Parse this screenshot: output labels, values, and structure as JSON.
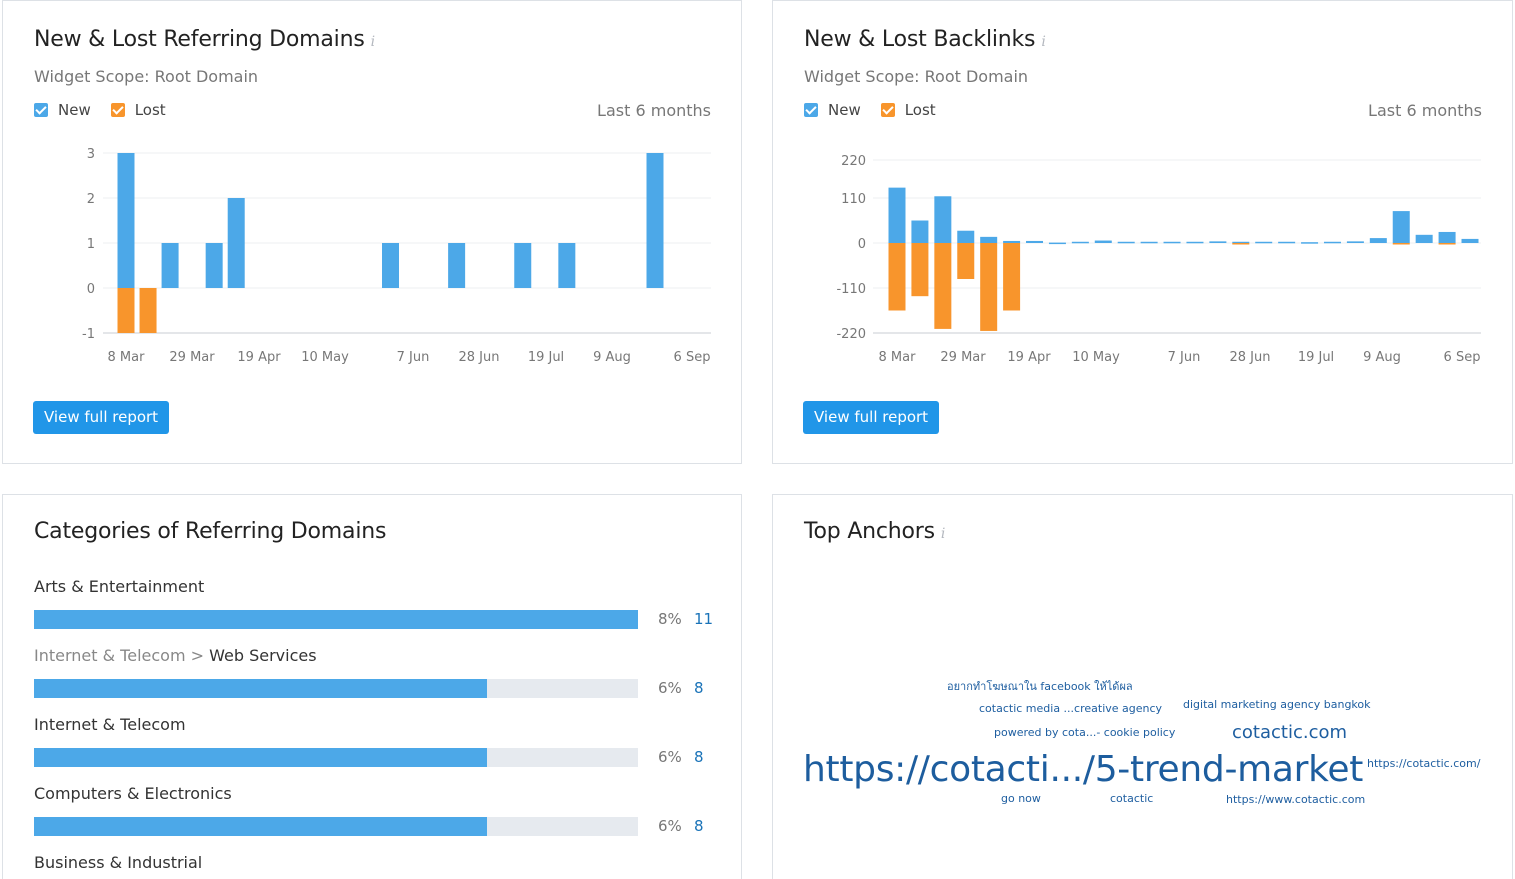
{
  "referring_domains": {
    "title": "New & Lost Referring Domains",
    "info_glyph": "i",
    "scope": "Widget Scope: Root Domain",
    "legend": {
      "new": "New",
      "lost": "Lost"
    },
    "period": "Last 6 months",
    "button": "View full report",
    "chart_data": {
      "type": "bar",
      "title": "",
      "xlabel": "",
      "ylabel": "",
      "y_ticks": [
        "3",
        "2",
        "1",
        "0",
        "-1"
      ],
      "x_tick_labels": [
        "8 Mar",
        "29 Mar",
        "19 Apr",
        "10 May",
        "7 Jun",
        "28 Jun",
        "19 Jul",
        "9 Aug",
        "6 Sep"
      ],
      "series": [
        {
          "name": "New",
          "color": "#4ca8e8",
          "values": [
            3,
            0,
            1,
            0,
            1,
            2,
            0,
            0,
            0,
            0,
            0,
            0,
            1,
            0,
            0,
            1,
            0,
            0,
            1,
            0,
            1,
            0,
            0,
            0,
            3
          ]
        },
        {
          "name": "Lost",
          "color": "#f8952c",
          "values": [
            -1,
            -1,
            0,
            0,
            0,
            0,
            0,
            0,
            0,
            0,
            0,
            0,
            0,
            0,
            0,
            0,
            0,
            0,
            0,
            0,
            0,
            0,
            0,
            0,
            0
          ]
        }
      ]
    }
  },
  "backlinks": {
    "title": "New & Lost Backlinks",
    "info_glyph": "i",
    "scope": "Widget Scope: Root Domain",
    "legend": {
      "new": "New",
      "lost": "Lost"
    },
    "period": "Last 6 months",
    "button": "View full report",
    "chart_data": {
      "type": "bar",
      "title": "",
      "xlabel": "",
      "ylabel": "",
      "y_ticks": [
        "220",
        "110",
        "0",
        "-110",
        "-220"
      ],
      "x_tick_labels": [
        "8 Mar",
        "29 Mar",
        "19 Apr",
        "10 May",
        "7 Jun",
        "28 Jun",
        "19 Jul",
        "9 Aug",
        "6 Sep"
      ],
      "series": [
        {
          "name": "New",
          "color": "#4ca8e8",
          "values": [
            140,
            55,
            115,
            30,
            15,
            5,
            5,
            1,
            3,
            6,
            3,
            3,
            3,
            3,
            4,
            3,
            3,
            3,
            2,
            3,
            4,
            12,
            78,
            20,
            27,
            10
          ]
        },
        {
          "name": "Lost",
          "color": "#f8952c",
          "values": [
            -165,
            -130,
            -210,
            -88,
            -215,
            -165,
            0,
            0,
            0,
            0,
            0,
            0,
            0,
            0,
            0,
            -2,
            0,
            0,
            0,
            0,
            0,
            0,
            -3,
            0,
            -2,
            0
          ]
        }
      ]
    }
  },
  "categories": {
    "title": "Categories of Referring Domains",
    "items": [
      {
        "prefix": "",
        "label": "Arts & Entertainment",
        "pct": "8%",
        "count": "11",
        "fraction": 1.0
      },
      {
        "prefix": "Internet & Telecom > ",
        "label": "Web Services",
        "pct": "6%",
        "count": "8",
        "fraction": 0.75
      },
      {
        "prefix": "",
        "label": "Internet & Telecom",
        "pct": "6%",
        "count": "8",
        "fraction": 0.75
      },
      {
        "prefix": "",
        "label": "Computers & Electronics",
        "pct": "6%",
        "count": "8",
        "fraction": 0.75
      },
      {
        "prefix": "",
        "label": "Business & Industrial",
        "pct": "",
        "count": "",
        "fraction": 0.7
      }
    ]
  },
  "anchors": {
    "title": "Top Anchors",
    "info_glyph": "i",
    "items": [
      "อยากทำโฆษณาใน facebook ให้ได้ผล",
      "cotactic media ...creative agency",
      "digital marketing agency bangkok",
      "powered by cota...- cookie policy",
      "cotactic.com",
      "https://cotacti.../5-trend-market",
      "https://cotactic.com/",
      "go now",
      "cotactic",
      "https://www.cotactic.com"
    ]
  }
}
